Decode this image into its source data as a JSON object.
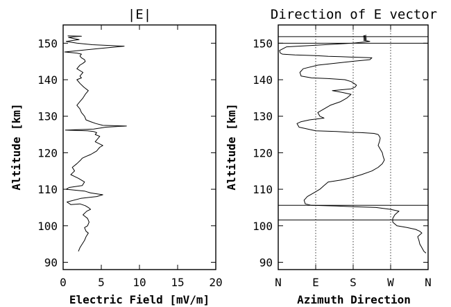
{
  "chart_data": [
    {
      "type": "line",
      "title": "|E|",
      "xlabel": "Electric Field [mV/m]",
      "ylabel": "Altitude [km]",
      "xlim": [
        0,
        20
      ],
      "ylim": [
        88,
        155
      ],
      "xticks": [
        "0",
        "5",
        "10",
        "15",
        "20"
      ],
      "yticks": [
        "90",
        "100",
        "110",
        "120",
        "130",
        "140",
        "150"
      ],
      "grid": false,
      "series": [
        {
          "x": [
            2.0,
            2.2,
            2.5,
            2.8,
            3.0,
            3.3,
            3.0,
            2.8,
            3.2,
            3.4,
            3.2,
            2.6,
            3.1,
            3.6,
            3.3,
            2.9,
            2.2,
            1.0,
            0.5,
            2.3,
            4.4,
            5.2,
            3.6,
            2.8,
            0.4,
            0.8,
            2.5,
            2.8,
            2.0,
            1.0,
            1.5,
            1.2,
            1.8,
            2.3,
            2.5,
            3.0,
            3.6,
            4.0,
            4.4,
            4.6,
            4.8,
            5.2,
            4.2,
            4.6,
            4.8,
            4.2,
            4.4,
            4.0,
            3.2,
            0.3,
            4.0,
            5.6,
            8.3,
            5.2,
            4.3,
            3.6,
            3.0,
            2.8,
            2.4,
            2.2,
            1.8,
            2.2,
            2.6,
            2.9,
            3.3,
            2.7,
            2.2,
            1.8,
            2.4,
            2.2,
            2.6,
            1.8,
            2.2,
            2.6,
            2.9,
            2.8,
            2.4,
            2.2,
            2.4,
            1.8,
            0.2,
            4.5,
            8.0,
            3.8,
            1.8,
            0.4,
            2.1,
            1.3,
            0.7,
            2.4,
            0.6
          ],
          "y": [
            93,
            94,
            95,
            96,
            97,
            98,
            98.5,
            99.5,
            100,
            101,
            102,
            103,
            104,
            104.5,
            105,
            105.5,
            106,
            105.8,
            106.5,
            107.5,
            108,
            108.5,
            109,
            109.5,
            110,
            110.5,
            111,
            112,
            113,
            114,
            115,
            116,
            117,
            118,
            118.5,
            119,
            119.5,
            120,
            120.5,
            121,
            121.5,
            122,
            123,
            124,
            124.5,
            125,
            125.5,
            125.8,
            126.0,
            126.2,
            126.5,
            127,
            127.3,
            127.5,
            128,
            128.5,
            129,
            130,
            131,
            132,
            133,
            134,
            135,
            136,
            137,
            138,
            139,
            140,
            140.5,
            141,
            142,
            143,
            144,
            144.5,
            145,
            145.5,
            146,
            146.5,
            147,
            147.3,
            147.6,
            148.5,
            149.2,
            149.6,
            150,
            150.5,
            151,
            151.3,
            151.6,
            151.9,
            152.0
          ]
        }
      ]
    },
    {
      "type": "line",
      "title": "Direction of E vector",
      "xlabel": "Azimuth Direction",
      "ylabel": "Altitude [km]",
      "xlim": [
        0,
        360
      ],
      "ylim": [
        88,
        155
      ],
      "xticks": [
        "N",
        "E",
        "S",
        "W",
        "N"
      ],
      "yticks": [
        "90",
        "100",
        "110",
        "120",
        "130",
        "140",
        "150"
      ],
      "grid": true,
      "series": [
        {
          "x": [
            355,
            350,
            345,
            340,
            338,
            335,
            340,
            345,
            340,
            330,
            310,
            285,
            280,
            275,
            275,
            280,
            285,
            290,
            270,
            235,
            185,
            140,
            80,
            65,
            62,
            70,
            85,
            100,
            110,
            120,
            150,
            170,
            200,
            225,
            240,
            250,
            255,
            252,
            250,
            245,
            240,
            243,
            245,
            243,
            240,
            230,
            200,
            170,
            140,
            90,
            50,
            45,
            55,
            75,
            110,
            100,
            95,
            110,
            125,
            150,
            165,
            175,
            155,
            130,
            175,
            185,
            188,
            182,
            175,
            160,
            120,
            80,
            55,
            52,
            60,
            95,
            175,
            220,
            225,
            150,
            120,
            90,
            40,
            10,
            5,
            3,
            20,
            180,
            220,
            205,
            212,
            205,
            212,
            205,
            212,
            205,
            212
          ],
          "y": [
            92.5,
            93,
            94,
            95,
            96,
            97,
            97.5,
            98,
            98.5,
            99,
            99.5,
            100,
            100.5,
            101,
            102,
            103,
            103.5,
            104,
            104.5,
            105,
            105.2,
            105.4,
            105.6,
            106,
            107,
            108,
            109,
            110,
            111,
            112,
            112.5,
            113,
            114,
            115,
            116,
            117,
            118,
            119,
            120,
            121,
            122,
            123,
            124,
            124.5,
            125,
            125.3,
            125.5,
            125.6,
            125.8,
            126,
            127,
            128,
            128.5,
            129,
            129.5,
            130,
            131,
            132,
            133,
            134,
            135,
            136,
            136.5,
            137,
            137.5,
            138,
            138.5,
            139,
            139.5,
            140,
            140.3,
            140.5,
            141,
            142,
            143,
            144,
            145,
            145.5,
            146,
            146.3,
            146.4,
            146.6,
            146.8,
            147,
            147.3,
            148,
            149,
            150,
            150.5,
            150.8,
            151.0,
            151.2,
            151.4,
            151.6,
            151.8,
            152.0,
            152.2
          ]
        }
      ]
    }
  ]
}
